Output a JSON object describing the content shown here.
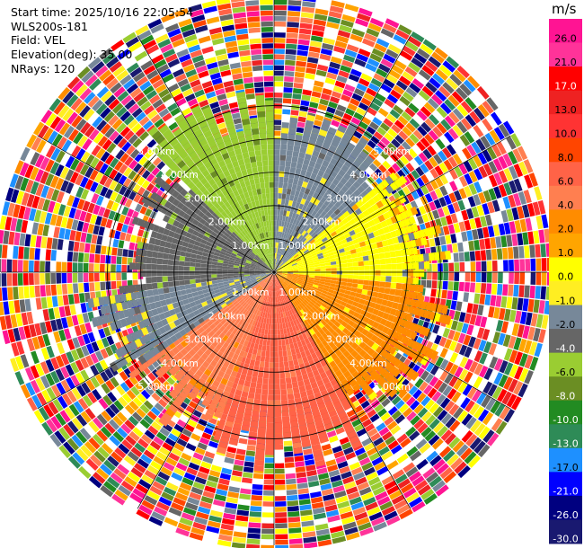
{
  "header": {
    "start_time": "Start time: 2025/10/16 22:05:54",
    "site": "WLS200s-181",
    "field": "Field: VEL",
    "elevation": "Elevation(deg): 35.00",
    "nrays": "NRays: 120"
  },
  "chart_data": {
    "type": "ppi",
    "field": "VEL",
    "nrays": 120,
    "range_km_max": 5.0,
    "range_rings_km": [
      1,
      2,
      3,
      4,
      5
    ],
    "range_ring_labels": [
      "1.00km",
      "2.00km",
      "3.00km",
      "4.00km",
      "5.00km"
    ],
    "colorbar": {
      "unit": "m/s",
      "ticks": [
        "26.0",
        "21.0",
        "17.0",
        "13.0",
        "10.0",
        "8.0",
        "6.0",
        "4.0",
        "2.0",
        "1.0",
        "0.0",
        "-1.0",
        "-2.0",
        "-4.0",
        "-6.0",
        "-8.0",
        "-10.0",
        "-13.0",
        "-17.0",
        "-21.0",
        "-26.0",
        "-30.0"
      ],
      "colors": [
        "#ff1493",
        "#ff3399",
        "#ff0000",
        "#ee2222",
        "#ff3333",
        "#ff4500",
        "#ff6347",
        "#ff7f50",
        "#ff8c00",
        "#ffa500",
        "#ffff00",
        "#ffee22",
        "#778899",
        "#666666",
        "#9acd32",
        "#6b8e23",
        "#228b22",
        "#2e8b57",
        "#1e90ff",
        "#0000ff",
        "#000080",
        "#191970"
      ]
    },
    "sectors": [
      {
        "from_deg": 315,
        "to_deg": 360,
        "value": -6.0,
        "extent_km": 3.0
      },
      {
        "from_deg": 0,
        "to_deg": 50,
        "value": -2.0,
        "extent_km": 2.6
      },
      {
        "from_deg": 50,
        "to_deg": 95,
        "value": 0.0,
        "extent_km": 2.8
      },
      {
        "from_deg": 95,
        "to_deg": 150,
        "value": 2.0,
        "extent_km": 3.0
      },
      {
        "from_deg": 150,
        "to_deg": 200,
        "value": 6.0,
        "extent_km": 3.2
      },
      {
        "from_deg": 200,
        "to_deg": 235,
        "value": 4.0,
        "extent_km": 3.0
      },
      {
        "from_deg": 235,
        "to_deg": 262,
        "value": -2.0,
        "extent_km": 3.0
      },
      {
        "from_deg": 262,
        "to_deg": 315,
        "value": -4.0,
        "extent_km": 2.4
      }
    ],
    "outer_noise": "range-folded / noisy returns beyond ~3 km, all color levels"
  }
}
